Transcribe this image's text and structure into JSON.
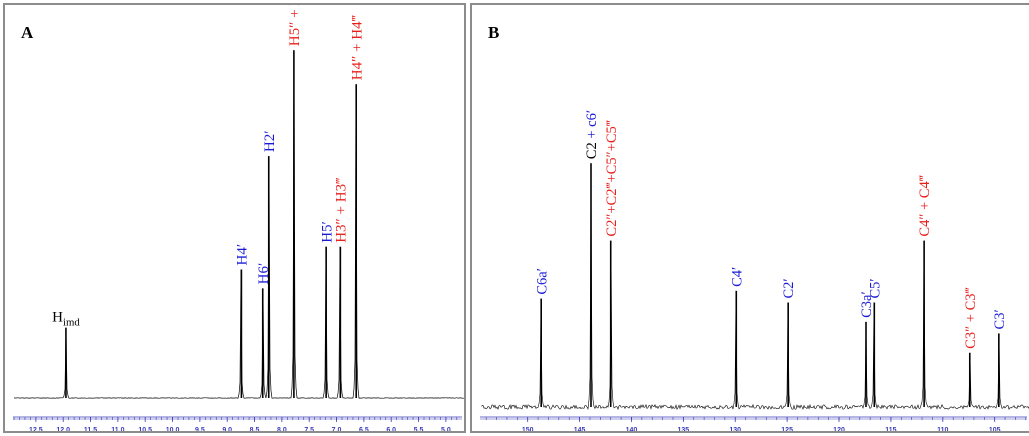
{
  "colors": {
    "blue": "#1a1ad6",
    "red": "#e8201c",
    "black": "#000000",
    "axis": "#3a3ab8",
    "trace": "#000000"
  },
  "chart_data": [
    {
      "type": "line",
      "panel_label": "A",
      "xlim": [
        12.9,
        4.65
      ],
      "x_reversed": true,
      "grid": false,
      "x_ticks": [
        12.5,
        12.0,
        11.5,
        11.0,
        10.5,
        10.0,
        9.5,
        9.0,
        8.5,
        8.0,
        7.5,
        7.0,
        6.5,
        6.0,
        5.5,
        5.0
      ],
      "x_tick_labels": [
        "12.5",
        "12.0",
        "11.5",
        "11.0",
        "10.5",
        "10.0",
        "9.5",
        "9.0",
        "8.5",
        "8.0",
        "7.5",
        "7.0",
        "6.5",
        "6.0",
        "5.5",
        "5.0"
      ],
      "peaks": [
        {
          "x": 11.95,
          "height": 0.186,
          "label": "H",
          "sub": "imd",
          "color": "black",
          "vertical": false
        },
        {
          "x": 8.74,
          "height": 0.34,
          "label": "H4′",
          "color": "blue",
          "vertical": true
        },
        {
          "x": 8.35,
          "height": 0.29,
          "label": "H6′",
          "color": "blue",
          "vertical": true
        },
        {
          "x": 8.24,
          "height": 0.64,
          "label": "H2′",
          "color": "blue",
          "vertical": true
        },
        {
          "x": 7.78,
          "height": 0.92,
          "label": "H5″ + H5‴",
          "color": "red",
          "vertical": true
        },
        {
          "x": 7.19,
          "height": 0.4,
          "label": "H5′",
          "color": "blue",
          "vertical": true
        },
        {
          "x": 6.93,
          "height": 0.4,
          "label": "H3″ + H3‴",
          "color": "red",
          "vertical": true
        },
        {
          "x": 6.64,
          "height": 0.83,
          "label": "H4″ + H4‴",
          "color": "red",
          "vertical": true
        }
      ]
    },
    {
      "type": "line",
      "panel_label": "B",
      "xlim": [
        154.5,
        101.5
      ],
      "x_reversed": true,
      "grid": false,
      "x_ticks": [
        150,
        145,
        140,
        135,
        130,
        125,
        120,
        115,
        110,
        105
      ],
      "x_tick_labels": [
        "150",
        "145",
        "140",
        "135",
        "130",
        "125",
        "120",
        "115",
        "110",
        "105"
      ],
      "peaks": [
        {
          "x": 148.7,
          "height": 0.28,
          "label": "C6a′",
          "color": "blue",
          "vertical": true
        },
        {
          "x": 143.9,
          "height": 0.63,
          "label": "C2",
          "label2": " + c6′",
          "color": "black",
          "color2": "blue",
          "vertical": true
        },
        {
          "x": 142.0,
          "height": 0.43,
          "label": "C2″+C2‴+C5″+C5‴",
          "color": "red",
          "vertical": true
        },
        {
          "x": 129.9,
          "height": 0.3,
          "label": "C4′",
          "color": "blue",
          "vertical": true
        },
        {
          "x": 124.9,
          "height": 0.27,
          "label": "C2′",
          "color": "blue",
          "vertical": true
        },
        {
          "x": 117.4,
          "height": 0.22,
          "label": "C3a′",
          "color": "blue",
          "vertical": true
        },
        {
          "x": 116.6,
          "height": 0.27,
          "label": "C5′",
          "color": "blue",
          "vertical": true
        },
        {
          "x": 111.8,
          "height": 0.43,
          "label": "C4″ + C4‴",
          "color": "red",
          "vertical": true
        },
        {
          "x": 107.4,
          "height": 0.14,
          "label": "C3″ + C3‴",
          "color": "red",
          "vertical": true
        },
        {
          "x": 104.6,
          "height": 0.19,
          "label": "C3′",
          "color": "blue",
          "vertical": true
        }
      ]
    }
  ]
}
